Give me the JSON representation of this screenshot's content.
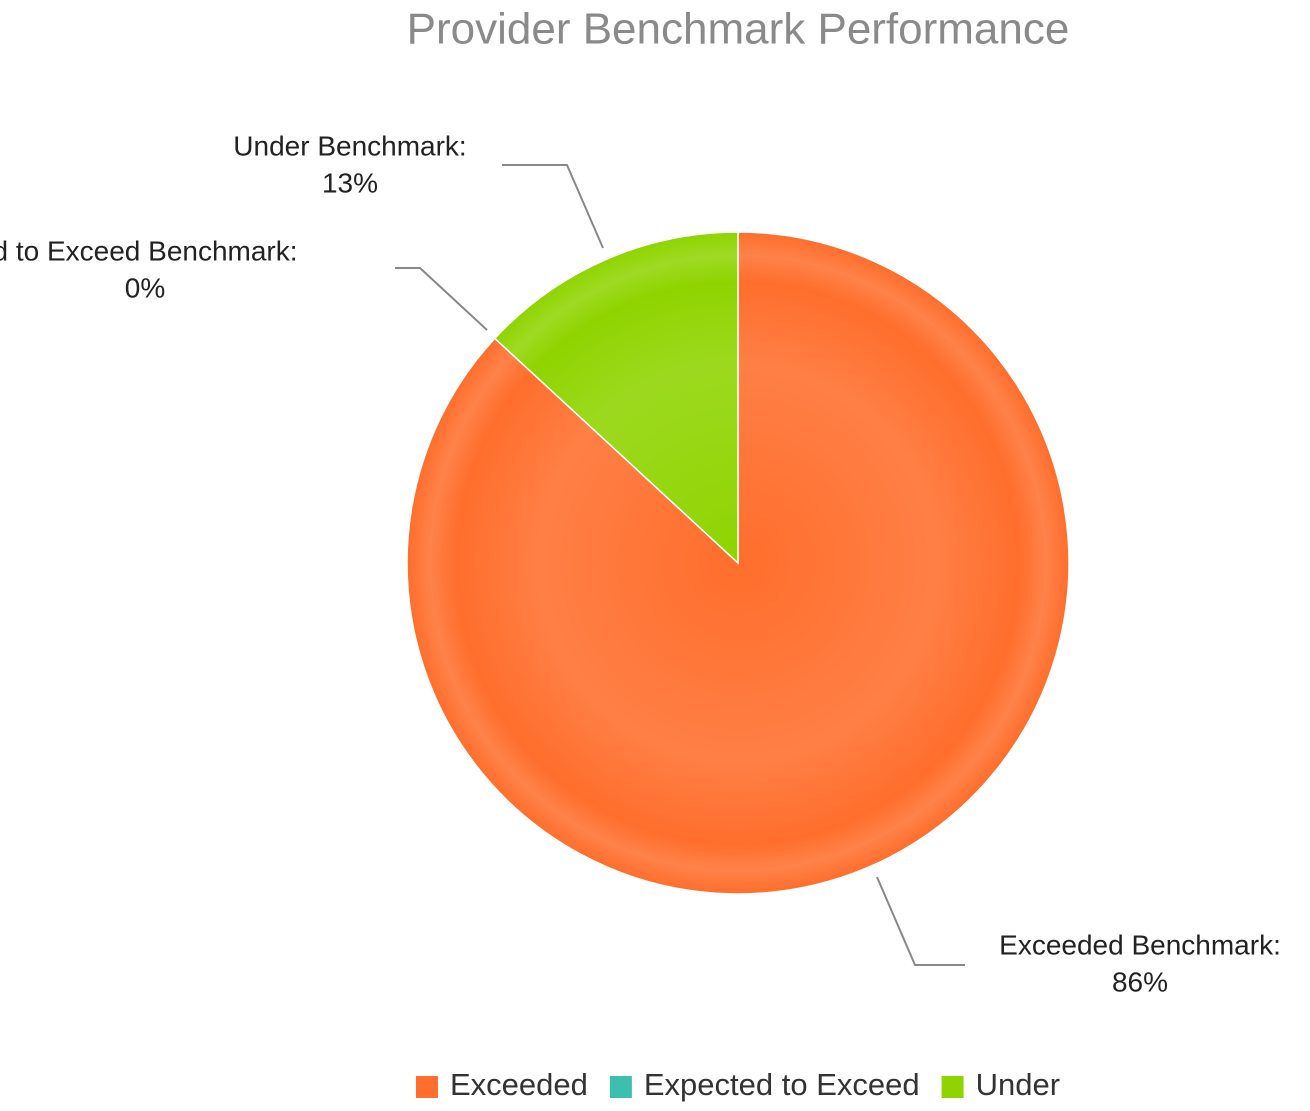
{
  "chart_data": {
    "type": "pie",
    "title": "Provider Benchmark Performance",
    "categories": [
      "Exceeded",
      "Expected to Exceed",
      "Under"
    ],
    "values": [
      86,
      0,
      13
    ],
    "value_labels": [
      "86%",
      "0%",
      "13%"
    ],
    "labels": [
      "Exceeded Benchmark:",
      "d to Exceed Benchmark:",
      "Under Benchmark:"
    ],
    "colors": [
      "#ff6e2c",
      "#3cbfae",
      "#8fd400"
    ],
    "legend": "bottom"
  }
}
